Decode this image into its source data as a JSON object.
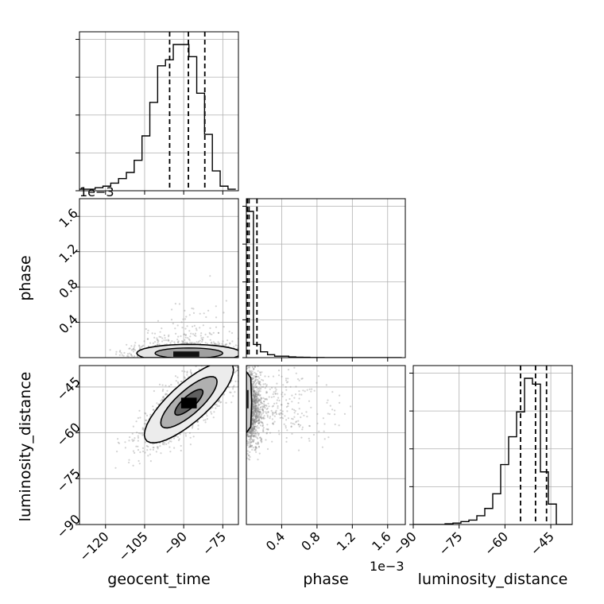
{
  "chart_data": {
    "type": "corner",
    "parameters": [
      "geocent_time",
      "phase",
      "luminosity_distance"
    ],
    "offset_text": "1e−3",
    "ranges": {
      "geocent_time": [
        -130,
        -69
      ],
      "phase": [
        0.0,
        1.8
      ],
      "luminosity_distance": [
        -90,
        -38
      ]
    },
    "ticks": {
      "geocent_time": [
        -120,
        -105,
        -90,
        -75
      ],
      "phase": [
        0.4,
        0.8,
        1.2,
        1.6
      ],
      "luminosity_distance": [
        -90,
        -75,
        -60,
        -45
      ]
    },
    "tick_labels": {
      "geocent_time": [
        "−120",
        "−105",
        "−90",
        "−75"
      ],
      "phase": [
        "0.4",
        "0.8",
        "1.2",
        "1.6"
      ],
      "luminosity_distance": [
        "−90",
        "−75",
        "−60",
        "−45"
      ]
    },
    "histograms": {
      "geocent_time": {
        "bin_start": -130,
        "bin_width": 3,
        "counts": [
          1,
          1,
          2,
          3,
          5,
          8,
          12,
          20,
          36,
          58,
          82,
          86,
          96,
          96,
          88,
          64,
          37,
          13,
          3,
          1
        ],
        "quantiles": [
          -95.4,
          -88.2,
          -81.9
        ]
      },
      "phase": {
        "bin_start": 0.0,
        "bin_width": 0.08,
        "counts": [
          100,
          9,
          4,
          2,
          1,
          1,
          0.5,
          0.3,
          0.2,
          0.1,
          0.1,
          0.05,
          0.05,
          0.03,
          0.02,
          0.02,
          0.01,
          0.01,
          0.01,
          0.01,
          0.01,
          0.01
        ],
        "quantiles": [
          0.01,
          0.03,
          0.12
        ]
      },
      "luminosity_distance": {
        "bin_start": -90,
        "bin_width": 2.6,
        "counts": [
          0,
          0,
          0,
          0,
          0.5,
          1,
          2,
          3,
          6,
          11,
          21,
          41,
          60,
          77,
          100,
          96,
          36,
          14,
          0,
          0
        ],
        "quantiles": [
          -54.9,
          -50.0,
          -46.4
        ]
      }
    },
    "scatter": {
      "phase_vs_geocent_time": {
        "center": [
          -88,
          0.12
        ],
        "spread": [
          10,
          0.12
        ],
        "density_peak": [
          -88,
          0.04
        ]
      },
      "luminosity_distance_vs_geocent_time": {
        "center": [
          -88,
          -50
        ],
        "spread": [
          9,
          7
        ],
        "correlation": 0.8
      },
      "luminosity_distance_vs_phase": {
        "center": [
          0.05,
          -52
        ],
        "spread": [
          0.15,
          6
        ]
      }
    },
    "grid": true,
    "colors": {
      "line": "#000000",
      "scatter": "#808080",
      "grid": "#b0b0b0"
    }
  }
}
